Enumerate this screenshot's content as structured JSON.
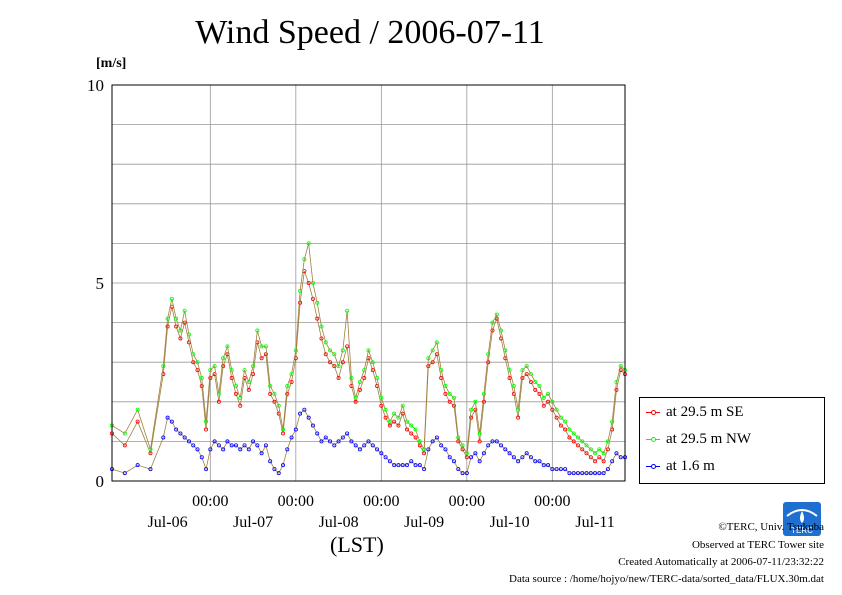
{
  "chart_data": {
    "type": "line",
    "title": "Wind Speed / 2006-07-11",
    "ylabel": "[m/s]",
    "xlabel": "(LST)",
    "ylim": [
      0,
      10
    ],
    "yticks": [
      0,
      5,
      10
    ],
    "ytick_labels": [
      "0",
      "5",
      "10"
    ],
    "xlim": [
      -0.15,
      5.85
    ],
    "xticks": [
      {
        "at": 1,
        "time": "00:00",
        "date": "Jul-06"
      },
      {
        "at": 2,
        "time": "00:00",
        "date": "Jul-07"
      },
      {
        "at": 3,
        "time": "00:00",
        "date": "Jul-08"
      },
      {
        "at": 4,
        "time": "00:00",
        "date": "Jul-09"
      },
      {
        "at": 5,
        "time": "00:00",
        "date": "Jul-10"
      },
      {
        "at": 6,
        "time": "",
        "date": "Jul-11"
      }
    ],
    "grid": true,
    "legend_position": "right",
    "x": [
      -0.15,
      0.0,
      0.15,
      0.3,
      0.45,
      0.5,
      0.55,
      0.6,
      0.65,
      0.7,
      0.75,
      0.8,
      0.85,
      0.9,
      0.95,
      1.0,
      1.05,
      1.1,
      1.15,
      1.2,
      1.25,
      1.3,
      1.35,
      1.4,
      1.45,
      1.5,
      1.55,
      1.6,
      1.65,
      1.7,
      1.75,
      1.8,
      1.85,
      1.9,
      1.95,
      2.0,
      2.05,
      2.1,
      2.15,
      2.2,
      2.25,
      2.3,
      2.35,
      2.4,
      2.45,
      2.5,
      2.55,
      2.6,
      2.65,
      2.7,
      2.75,
      2.8,
      2.85,
      2.9,
      2.95,
      3.0,
      3.05,
      3.1,
      3.15,
      3.2,
      3.25,
      3.3,
      3.35,
      3.4,
      3.45,
      3.5,
      3.55,
      3.6,
      3.65,
      3.7,
      3.75,
      3.8,
      3.85,
      3.9,
      3.95,
      4.0,
      4.05,
      4.1,
      4.15,
      4.2,
      4.25,
      4.3,
      4.35,
      4.4,
      4.45,
      4.5,
      4.55,
      4.6,
      4.65,
      4.7,
      4.75,
      4.8,
      4.85,
      4.9,
      4.95,
      5.0,
      5.05,
      5.1,
      5.15,
      5.2,
      5.25,
      5.3,
      5.35,
      5.4,
      5.45,
      5.5,
      5.55,
      5.6,
      5.65,
      5.7,
      5.75,
      5.8,
      5.85
    ],
    "series": [
      {
        "name": "at 29.5 m SE",
        "color": "#ff0000",
        "values": [
          1.2,
          0.9,
          1.5,
          0.7,
          2.7,
          3.9,
          4.4,
          3.9,
          3.6,
          4.0,
          3.5,
          3.0,
          2.8,
          2.4,
          1.3,
          2.6,
          2.7,
          2.0,
          2.9,
          3.2,
          2.6,
          2.2,
          1.9,
          2.6,
          2.3,
          2.7,
          3.5,
          3.1,
          3.2,
          2.2,
          2.0,
          1.7,
          1.2,
          2.2,
          2.5,
          3.1,
          4.5,
          5.3,
          5.0,
          4.6,
          4.1,
          3.6,
          3.2,
          3.0,
          2.9,
          2.6,
          3.0,
          3.4,
          2.4,
          2.0,
          2.3,
          2.6,
          3.1,
          2.8,
          2.4,
          1.9,
          1.6,
          1.4,
          1.5,
          1.4,
          1.7,
          1.3,
          1.2,
          1.1,
          0.9,
          0.7,
          2.9,
          3.0,
          3.2,
          2.6,
          2.2,
          2.0,
          1.9,
          1.0,
          0.8,
          0.6,
          1.6,
          1.8,
          1.0,
          2.0,
          3.0,
          3.8,
          4.1,
          3.6,
          3.1,
          2.6,
          2.2,
          1.6,
          2.6,
          2.7,
          2.5,
          2.3,
          2.2,
          1.9,
          2.0,
          1.8,
          1.6,
          1.4,
          1.3,
          1.1,
          1.0,
          0.9,
          0.8,
          0.7,
          0.6,
          0.5,
          0.6,
          0.5,
          0.8,
          1.3,
          2.3,
          2.8,
          2.7
        ]
      },
      {
        "name": "at 29.5 m NW",
        "color": "#00ff00",
        "values": [
          1.4,
          1.2,
          1.8,
          0.8,
          2.9,
          4.1,
          4.6,
          4.1,
          3.8,
          4.3,
          3.7,
          3.2,
          3.0,
          2.6,
          1.5,
          2.8,
          2.9,
          2.2,
          3.1,
          3.4,
          2.8,
          2.4,
          2.1,
          2.8,
          2.5,
          2.9,
          3.8,
          3.4,
          3.4,
          2.4,
          2.2,
          1.9,
          1.3,
          2.4,
          2.7,
          3.3,
          4.8,
          5.6,
          6.0,
          5.0,
          4.5,
          3.9,
          3.5,
          3.3,
          3.2,
          2.9,
          3.3,
          4.3,
          2.6,
          2.1,
          2.5,
          2.8,
          3.3,
          3.0,
          2.6,
          2.1,
          1.8,
          1.5,
          1.7,
          1.6,
          1.9,
          1.5,
          1.4,
          1.3,
          1.0,
          0.8,
          3.1,
          3.3,
          3.5,
          2.8,
          2.4,
          2.2,
          2.1,
          1.1,
          0.9,
          0.7,
          1.8,
          2.0,
          1.2,
          2.2,
          3.2,
          4.0,
          4.2,
          3.8,
          3.3,
          2.8,
          2.4,
          1.8,
          2.8,
          2.9,
          2.7,
          2.5,
          2.4,
          2.1,
          2.2,
          2.0,
          1.8,
          1.6,
          1.5,
          1.3,
          1.2,
          1.1,
          1.0,
          0.9,
          0.8,
          0.7,
          0.8,
          0.7,
          1.0,
          1.5,
          2.5,
          2.9,
          2.8
        ]
      },
      {
        "name": "at 1.6 m",
        "color": "#0000ff",
        "values": [
          0.3,
          0.2,
          0.4,
          0.3,
          1.1,
          1.6,
          1.5,
          1.3,
          1.2,
          1.1,
          1.0,
          0.9,
          0.8,
          0.6,
          0.3,
          0.8,
          1.0,
          0.9,
          0.8,
          1.0,
          0.9,
          0.9,
          0.8,
          0.9,
          0.8,
          1.0,
          0.9,
          0.7,
          0.9,
          0.5,
          0.3,
          0.2,
          0.4,
          0.8,
          1.1,
          1.3,
          1.7,
          1.8,
          1.6,
          1.4,
          1.2,
          1.0,
          1.1,
          1.0,
          0.9,
          1.0,
          1.1,
          1.2,
          1.0,
          0.9,
          0.8,
          0.9,
          1.0,
          0.9,
          0.8,
          0.7,
          0.6,
          0.5,
          0.4,
          0.4,
          0.4,
          0.4,
          0.5,
          0.4,
          0.4,
          0.3,
          0.8,
          1.0,
          1.1,
          0.9,
          0.8,
          0.6,
          0.5,
          0.3,
          0.2,
          0.2,
          0.6,
          0.7,
          0.5,
          0.7,
          0.9,
          1.0,
          1.0,
          0.9,
          0.8,
          0.7,
          0.6,
          0.5,
          0.6,
          0.7,
          0.6,
          0.5,
          0.5,
          0.4,
          0.4,
          0.3,
          0.3,
          0.3,
          0.3,
          0.2,
          0.2,
          0.2,
          0.2,
          0.2,
          0.2,
          0.2,
          0.2,
          0.2,
          0.3,
          0.5,
          0.7,
          0.6,
          0.6
        ]
      }
    ]
  },
  "legend": {
    "se": "at 29.5 m SE",
    "nw": "at 29.5 m NW",
    "low": "at 1.6 m"
  },
  "footer": {
    "copyright": "©TERC, Univ. Tsukuba",
    "observed": "Observed at TERC Tower site",
    "created": "Created Automatically at 2006-07-11/23:32:22",
    "source": "Data source : /home/hojyo/new/TERC-data/sorted_data/FLUX.30m.dat"
  },
  "logo_text": "TERC"
}
